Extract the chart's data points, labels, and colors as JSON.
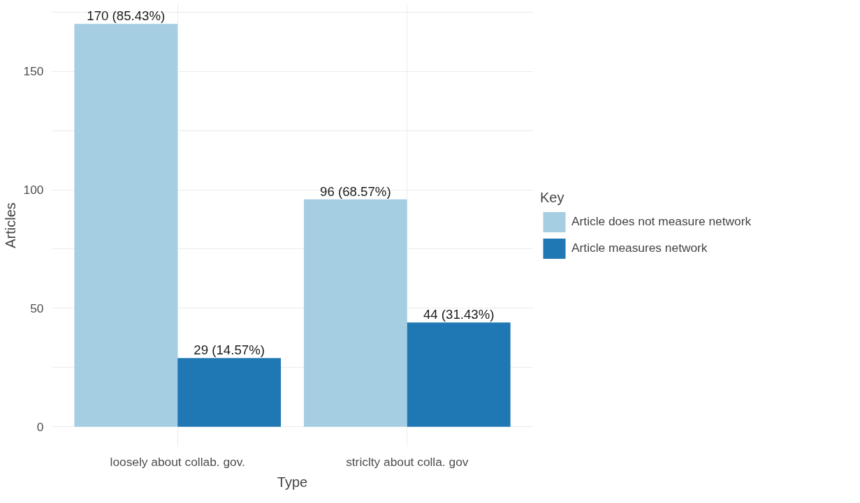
{
  "chart_data": {
    "type": "bar",
    "xlabel": "Type",
    "ylabel": "Articles",
    "legend_title": "Key",
    "categories": [
      "loosely about collab. gov.",
      "striclty about colla. gov"
    ],
    "series": [
      {
        "name": "Article does not measure network",
        "color": "#a6cee3",
        "values": [
          170,
          96
        ],
        "value_labels": [
          "170 (85.43%)",
          "96 (68.57%)"
        ]
      },
      {
        "name": "Article measures network",
        "color": "#1f78b4",
        "values": [
          29,
          44
        ],
        "value_labels": [
          "29 (14.57%)",
          "44 (31.43%)"
        ]
      }
    ],
    "ylim": [
      -8.5,
      178.5
    ],
    "yticks": [
      0,
      {
        "value": 25,
        "label": null
      },
      50,
      {
        "value": 75,
        "label": null
      },
      100,
      {
        "value": 125,
        "label": null
      },
      150,
      {
        "value": 175,
        "label": null
      }
    ],
    "grid": true,
    "legend": "right"
  }
}
